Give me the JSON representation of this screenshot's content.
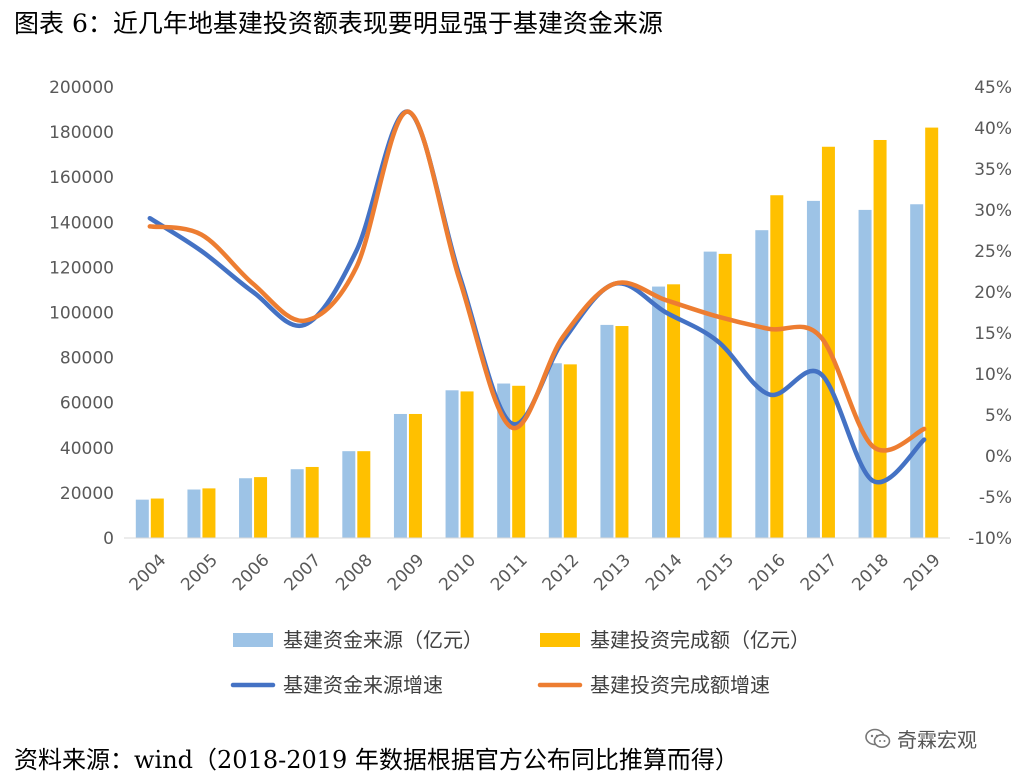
{
  "title": "图表 6：近几年地基建投资额表现要明显强于基建资金来源",
  "source": "资料来源：wind（2018-2019 年数据根据官方公布同比推算而得）",
  "watermark": "奇霖宏观",
  "colors": {
    "funds_bar": "#9DC3E6",
    "invest_bar": "#FFC000",
    "funds_growth": "#4472C4",
    "invest_growth": "#ED7D31"
  },
  "chart_data": {
    "type": "bar",
    "categories": [
      "2004",
      "2005",
      "2006",
      "2007",
      "2008",
      "2009",
      "2010",
      "2011",
      "2012",
      "2013",
      "2014",
      "2015",
      "2016",
      "2017",
      "2018",
      "2019"
    ],
    "series": [
      {
        "name": "基建资金来源（亿元）",
        "kind": "bar",
        "axis": "left",
        "values": [
          17000,
          21500,
          26500,
          30500,
          38500,
          55000,
          65500,
          68500,
          77500,
          94500,
          111500,
          127000,
          136500,
          149500,
          145500,
          148000
        ]
      },
      {
        "name": "基建投资完成额（亿元）",
        "kind": "bar",
        "axis": "left",
        "values": [
          17500,
          22000,
          27000,
          31500,
          38500,
          55000,
          65000,
          67500,
          77000,
          94000,
          112500,
          126000,
          152000,
          173500,
          176500,
          182000
        ]
      },
      {
        "name": "基建资金来源增速",
        "kind": "line",
        "axis": "right",
        "values": [
          0.29,
          0.25,
          0.2,
          0.16,
          0.25,
          0.42,
          0.22,
          0.04,
          0.14,
          0.21,
          0.175,
          0.14,
          0.075,
          0.1,
          -0.03,
          0.02
        ]
      },
      {
        "name": "基建投资完成额增速",
        "kind": "line",
        "axis": "right",
        "values": [
          0.28,
          0.27,
          0.21,
          0.165,
          0.23,
          0.42,
          0.215,
          0.035,
          0.145,
          0.21,
          0.19,
          0.17,
          0.155,
          0.145,
          0.012,
          0.033
        ]
      }
    ],
    "left_axis": {
      "min": 0,
      "max": 200000,
      "ticks": [
        "0",
        "20000",
        "40000",
        "60000",
        "80000",
        "100000",
        "120000",
        "140000",
        "160000",
        "180000",
        "200000"
      ]
    },
    "right_axis": {
      "min": -0.1,
      "max": 0.45,
      "ticks": [
        "-10%",
        "-5%",
        "0%",
        "5%",
        "10%",
        "15%",
        "20%",
        "25%",
        "30%",
        "35%",
        "40%",
        "45%"
      ]
    },
    "legend": {
      "position": "bottom",
      "items": [
        "基建资金来源（亿元）",
        "基建投资完成额（亿元）",
        "基建资金来源增速",
        "基建投资完成额增速"
      ]
    },
    "grid": false
  }
}
